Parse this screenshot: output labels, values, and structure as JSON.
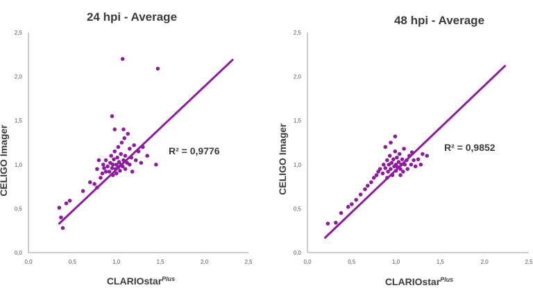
{
  "colors": {
    "marker": "#8e1a9e",
    "trendline": "#8e1a9e",
    "text": "#3a3a3a",
    "axis": "#9a9a9a"
  },
  "chart_data": [
    {
      "type": "scatter",
      "title": "24 hpi - Average",
      "xlabel": "CLARIOstar",
      "xlabel_sup": "Plus",
      "ylabel": "CELIGO Imager",
      "xlim": [
        0,
        2.5
      ],
      "ylim": [
        0,
        2.5
      ],
      "x_ticks": [
        "0,0",
        "0,5",
        "1,0",
        "1,5",
        "2,0",
        "2,5"
      ],
      "y_ticks": [
        "0,0",
        "0,5",
        "1,0",
        "1,5",
        "2,0",
        "2,5"
      ],
      "r2_label": "R² = 0,9776",
      "trendline": {
        "x": [
          0.35,
          2.32
        ],
        "y": [
          0.33,
          2.19
        ]
      },
      "points": [
        {
          "x": 0.35,
          "y": 0.51
        },
        {
          "x": 0.37,
          "y": 0.4
        },
        {
          "x": 0.39,
          "y": 0.28
        },
        {
          "x": 0.43,
          "y": 0.56
        },
        {
          "x": 0.47,
          "y": 0.59
        },
        {
          "x": 0.62,
          "y": 0.7
        },
        {
          "x": 0.7,
          "y": 0.8
        },
        {
          "x": 0.75,
          "y": 0.78
        },
        {
          "x": 0.78,
          "y": 0.74
        },
        {
          "x": 0.82,
          "y": 0.85
        },
        {
          "x": 0.84,
          "y": 0.9
        },
        {
          "x": 0.85,
          "y": 1.0
        },
        {
          "x": 0.86,
          "y": 0.96
        },
        {
          "x": 0.88,
          "y": 0.92
        },
        {
          "x": 0.88,
          "y": 1.05
        },
        {
          "x": 0.9,
          "y": 0.98
        },
        {
          "x": 0.92,
          "y": 0.92
        },
        {
          "x": 0.93,
          "y": 1.02
        },
        {
          "x": 0.94,
          "y": 1.1
        },
        {
          "x": 0.95,
          "y": 0.96
        },
        {
          "x": 0.96,
          "y": 1.0
        },
        {
          "x": 0.96,
          "y": 0.88
        },
        {
          "x": 0.97,
          "y": 1.06
        },
        {
          "x": 0.98,
          "y": 1.15
        },
        {
          "x": 0.99,
          "y": 0.95
        },
        {
          "x": 1.0,
          "y": 1.0
        },
        {
          "x": 1.0,
          "y": 0.9
        },
        {
          "x": 1.01,
          "y": 1.08
        },
        {
          "x": 1.02,
          "y": 1.2
        },
        {
          "x": 1.02,
          "y": 0.97
        },
        {
          "x": 1.03,
          "y": 1.03
        },
        {
          "x": 1.04,
          "y": 0.93
        },
        {
          "x": 1.05,
          "y": 1.12
        },
        {
          "x": 1.05,
          "y": 1.0
        },
        {
          "x": 1.06,
          "y": 1.25
        },
        {
          "x": 1.07,
          "y": 0.98
        },
        {
          "x": 1.08,
          "y": 1.05
        },
        {
          "x": 1.09,
          "y": 1.3
        },
        {
          "x": 1.1,
          "y": 0.95
        },
        {
          "x": 1.1,
          "y": 1.1
        },
        {
          "x": 1.12,
          "y": 1.02
        },
        {
          "x": 1.13,
          "y": 1.35
        },
        {
          "x": 1.15,
          "y": 1.0
        },
        {
          "x": 1.15,
          "y": 1.18
        },
        {
          "x": 1.17,
          "y": 1.08
        },
        {
          "x": 1.18,
          "y": 0.92
        },
        {
          "x": 1.2,
          "y": 1.22
        },
        {
          "x": 1.22,
          "y": 1.05
        },
        {
          "x": 1.25,
          "y": 1.15
        },
        {
          "x": 1.28,
          "y": 1.02
        },
        {
          "x": 1.3,
          "y": 1.2
        },
        {
          "x": 1.35,
          "y": 1.1
        },
        {
          "x": 1.45,
          "y": 1.0
        },
        {
          "x": 0.8,
          "y": 1.05
        },
        {
          "x": 0.78,
          "y": 0.95
        },
        {
          "x": 0.98,
          "y": 1.4
        },
        {
          "x": 1.08,
          "y": 1.4
        },
        {
          "x": 0.95,
          "y": 1.55
        },
        {
          "x": 1.07,
          "y": 2.2
        },
        {
          "x": 1.47,
          "y": 2.09
        }
      ]
    },
    {
      "type": "scatter",
      "title": "48 hpi - Average",
      "xlabel": "CLARIOstar",
      "xlabel_sup": "Plus",
      "ylabel": "CELIGO Imager",
      "xlim": [
        0,
        2.5
      ],
      "ylim": [
        0,
        2.5
      ],
      "x_ticks": [
        "0,0",
        "0,5",
        "1,0",
        "1,5",
        "2,0",
        "2,5"
      ],
      "y_ticks": [
        "0,0",
        "0,5",
        "1,0",
        "1,5",
        "2,0",
        "2,5"
      ],
      "r2_label": "R² = 0,9852",
      "trendline": {
        "x": [
          0.2,
          2.23
        ],
        "y": [
          0.17,
          2.12
        ]
      },
      "points": [
        {
          "x": 0.23,
          "y": 0.33
        },
        {
          "x": 0.32,
          "y": 0.34
        },
        {
          "x": 0.38,
          "y": 0.45
        },
        {
          "x": 0.46,
          "y": 0.52
        },
        {
          "x": 0.5,
          "y": 0.55
        },
        {
          "x": 0.55,
          "y": 0.6
        },
        {
          "x": 0.6,
          "y": 0.66
        },
        {
          "x": 0.65,
          "y": 0.72
        },
        {
          "x": 0.68,
          "y": 0.76
        },
        {
          "x": 0.72,
          "y": 0.8
        },
        {
          "x": 0.75,
          "y": 0.85
        },
        {
          "x": 0.78,
          "y": 0.88
        },
        {
          "x": 0.8,
          "y": 0.92
        },
        {
          "x": 0.82,
          "y": 0.95
        },
        {
          "x": 0.85,
          "y": 0.9
        },
        {
          "x": 0.86,
          "y": 1.0
        },
        {
          "x": 0.88,
          "y": 0.96
        },
        {
          "x": 0.9,
          "y": 1.05
        },
        {
          "x": 0.91,
          "y": 0.92
        },
        {
          "x": 0.92,
          "y": 1.0
        },
        {
          "x": 0.93,
          "y": 1.1
        },
        {
          "x": 0.94,
          "y": 0.95
        },
        {
          "x": 0.95,
          "y": 1.02
        },
        {
          "x": 0.96,
          "y": 0.88
        },
        {
          "x": 0.97,
          "y": 1.06
        },
        {
          "x": 0.98,
          "y": 0.98
        },
        {
          "x": 0.99,
          "y": 1.15
        },
        {
          "x": 1.0,
          "y": 1.0
        },
        {
          "x": 1.0,
          "y": 0.93
        },
        {
          "x": 1.01,
          "y": 1.08
        },
        {
          "x": 1.02,
          "y": 0.97
        },
        {
          "x": 1.03,
          "y": 1.03
        },
        {
          "x": 1.04,
          "y": 1.12
        },
        {
          "x": 1.05,
          "y": 0.95
        },
        {
          "x": 1.06,
          "y": 1.0
        },
        {
          "x": 1.07,
          "y": 1.06
        },
        {
          "x": 1.08,
          "y": 0.92
        },
        {
          "x": 1.09,
          "y": 1.18
        },
        {
          "x": 1.1,
          "y": 1.0
        },
        {
          "x": 1.12,
          "y": 1.05
        },
        {
          "x": 1.13,
          "y": 0.95
        },
        {
          "x": 1.15,
          "y": 1.1
        },
        {
          "x": 1.17,
          "y": 1.0
        },
        {
          "x": 1.18,
          "y": 1.14
        },
        {
          "x": 1.2,
          "y": 1.05
        },
        {
          "x": 1.22,
          "y": 0.98
        },
        {
          "x": 1.25,
          "y": 1.06
        },
        {
          "x": 1.28,
          "y": 1.0
        },
        {
          "x": 1.3,
          "y": 1.12
        },
        {
          "x": 1.35,
          "y": 1.1
        },
        {
          "x": 0.88,
          "y": 1.2
        },
        {
          "x": 0.94,
          "y": 1.25
        },
        {
          "x": 0.99,
          "y": 1.32
        },
        {
          "x": 0.9,
          "y": 0.85
        },
        {
          "x": 1.05,
          "y": 0.88
        }
      ]
    }
  ]
}
